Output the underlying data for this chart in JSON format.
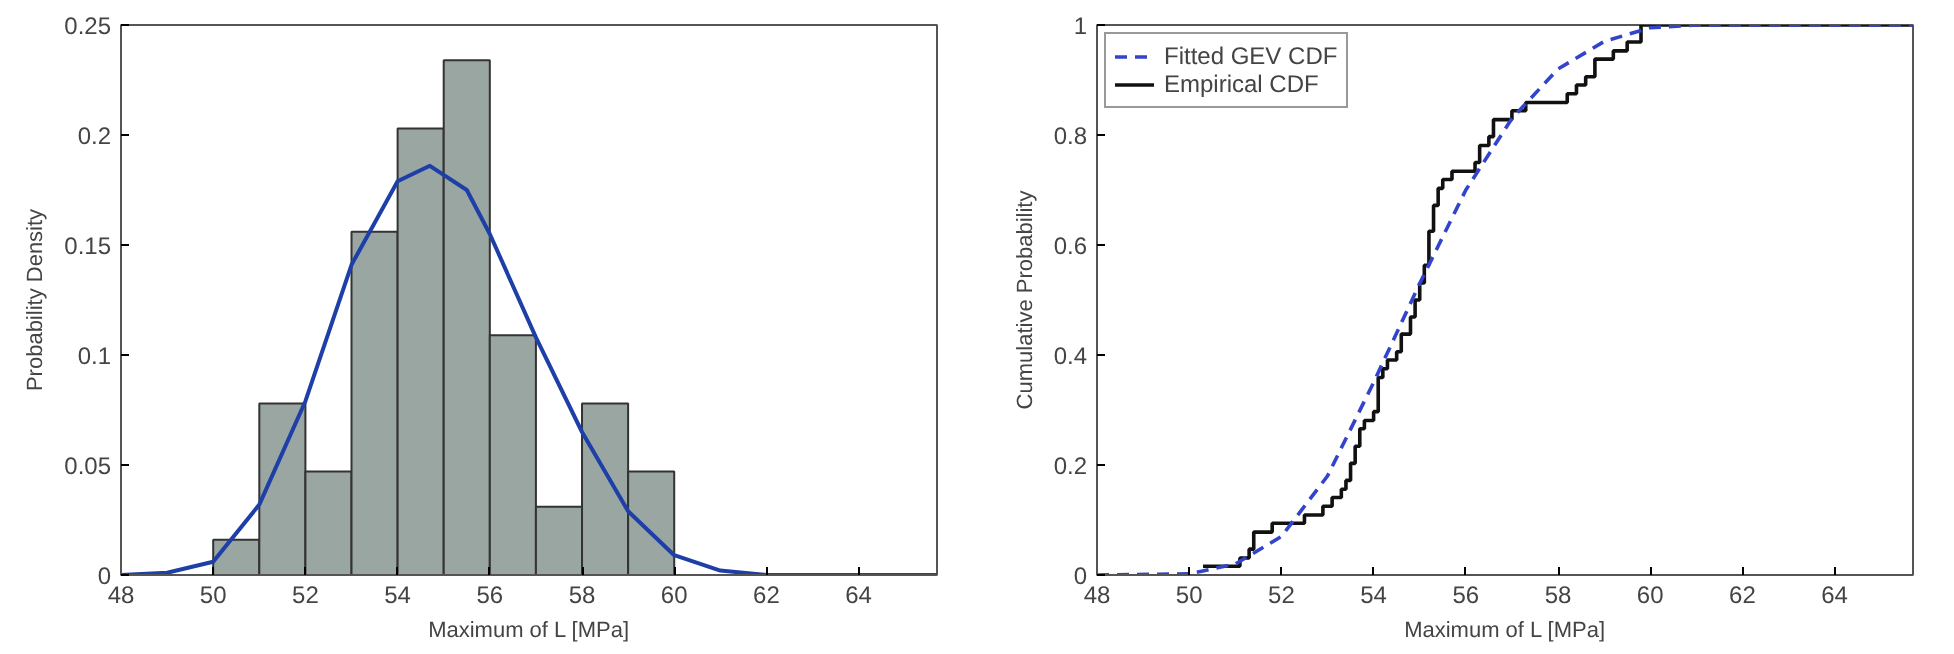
{
  "chart_data": [
    {
      "type": "histogram",
      "xlabel": "Maximum of L [MPa]",
      "ylabel": "Probability Density",
      "bins": [
        50,
        51,
        52,
        53,
        54,
        55,
        56,
        57,
        58,
        59,
        60
      ],
      "values": [
        0.016,
        0.078,
        0.047,
        0.156,
        0.203,
        0.234,
        0.109,
        0.031,
        0.078,
        0.047
      ],
      "color": "#9aa6a2",
      "xlim": [
        48,
        65.7
      ],
      "ylim": [
        0,
        0.25
      ],
      "xticks": [
        48,
        50,
        52,
        54,
        56,
        58,
        60,
        62,
        64
      ],
      "yticks": [
        0,
        0.05,
        0.1,
        0.15,
        0.2,
        0.25
      ],
      "grid": false,
      "legend": false,
      "series": [
        {
          "type": "line",
          "color": "#1f3fa8",
          "x": [
            48,
            49,
            50,
            51,
            52,
            53,
            54,
            54.7,
            55.5,
            56,
            57,
            58,
            59,
            60,
            61,
            62,
            65.7
          ],
          "values": [
            0,
            0.001,
            0.006,
            0.032,
            0.079,
            0.141,
            0.179,
            0.186,
            0.175,
            0.155,
            0.108,
            0.065,
            0.029,
            0.009,
            0.002,
            0,
            0
          ]
        }
      ]
    },
    {
      "type": "line",
      "xlabel": "Maximum of L [MPa]",
      "ylabel": "Cumulative Probability",
      "xlim": [
        48,
        65.7
      ],
      "ylim": [
        0,
        1
      ],
      "xticks": [
        48,
        50,
        52,
        54,
        56,
        58,
        60,
        62,
        64
      ],
      "yticks": [
        0,
        0.2,
        0.4,
        0.6,
        0.8,
        1
      ],
      "grid": false,
      "legend": "top left",
      "series": [
        {
          "name": "Fitted GEV CDF",
          "type": "line",
          "line_style": "dashed",
          "color": "#3344cc",
          "x": [
            48,
            50,
            51,
            52,
            53,
            54,
            55,
            56,
            57,
            58,
            59,
            60,
            61,
            65.7
          ],
          "values": [
            0,
            0.002,
            0.02,
            0.07,
            0.18,
            0.35,
            0.53,
            0.7,
            0.83,
            0.92,
            0.97,
            0.995,
            1,
            1
          ]
        },
        {
          "name": "Empirical CDF",
          "type": "step",
          "line_style": "solid",
          "color": "#111111",
          "x": [
            50.3,
            51.1,
            51.3,
            51.4,
            51.8,
            52.5,
            52.9,
            53.1,
            53.3,
            53.4,
            53.5,
            53.6,
            53.7,
            53.8,
            54.0,
            54.1,
            54.2,
            54.3,
            54.5,
            54.6,
            54.8,
            54.9,
            55.0,
            55.1,
            55.2,
            55.3,
            55.4,
            55.5,
            55.7,
            56.2,
            56.3,
            56.5,
            56.6,
            57.0,
            57.3,
            58.2,
            58.4,
            58.6,
            58.8,
            59.2,
            59.5,
            59.8,
            65.7
          ],
          "values": [
            0.016,
            0.031,
            0.047,
            0.078,
            0.094,
            0.109,
            0.125,
            0.141,
            0.156,
            0.172,
            0.203,
            0.234,
            0.266,
            0.281,
            0.297,
            0.359,
            0.375,
            0.391,
            0.406,
            0.438,
            0.469,
            0.5,
            0.531,
            0.563,
            0.625,
            0.672,
            0.703,
            0.719,
            0.734,
            0.75,
            0.781,
            0.797,
            0.828,
            0.844,
            0.859,
            0.875,
            0.891,
            0.906,
            0.938,
            0.953,
            0.969,
            1,
            1
          ]
        }
      ]
    }
  ]
}
